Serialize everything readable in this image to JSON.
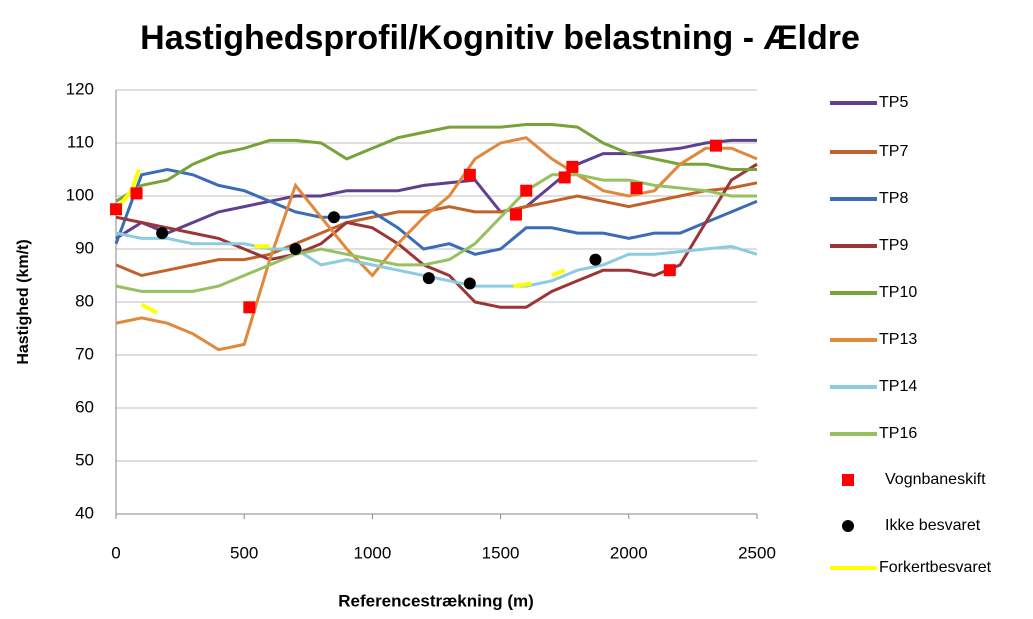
{
  "chart_data": {
    "type": "line",
    "title": "Hastighedsprofil/Kognitiv belastning - Ældre",
    "x_label": "Referencestrækning (m)",
    "y_label": "Hastighed (km/t)",
    "x": [
      0,
      100,
      200,
      300,
      400,
      500,
      600,
      700,
      800,
      900,
      1000,
      1100,
      1200,
      1300,
      1400,
      1500,
      1600,
      1700,
      1800,
      1900,
      2000,
      2100,
      2200,
      2300,
      2400,
      2500
    ],
    "xlim": [
      0,
      2500
    ],
    "xticks": [
      0,
      500,
      1000,
      1500,
      2000,
      2500
    ],
    "ylim": [
      40,
      120
    ],
    "yticks": [
      40,
      50,
      60,
      70,
      80,
      90,
      100,
      110,
      120
    ],
    "grid": true,
    "series": [
      {
        "name": "TP5",
        "color": "#5f3f8f",
        "values": [
          92,
          95,
          93,
          95,
          97,
          98,
          99,
          100,
          100,
          101,
          101,
          101,
          102,
          102.5,
          103,
          97,
          98,
          102,
          106,
          108,
          108,
          108.5,
          109,
          110,
          110.5,
          110.5
        ]
      },
      {
        "name": "TP7",
        "color": "#c0622a",
        "values": [
          87,
          85,
          86,
          87,
          88,
          88,
          89,
          91,
          93,
          95,
          96,
          97,
          97,
          98,
          97,
          97,
          98,
          99,
          100,
          99,
          98,
          99,
          100,
          101,
          101.5,
          102.5
        ]
      },
      {
        "name": "TP8",
        "color": "#3a6db5",
        "values": [
          91,
          104,
          105,
          104,
          102,
          101,
          99,
          97,
          96,
          96,
          97,
          94,
          90,
          91,
          89,
          90,
          94,
          94,
          93,
          93,
          92,
          93,
          93,
          95,
          97,
          99
        ]
      },
      {
        "name": "TP9",
        "color": "#9c3636",
        "values": [
          96,
          95,
          94,
          93,
          92,
          90,
          88,
          89,
          91,
          95,
          94,
          91,
          87,
          85,
          80,
          79,
          79,
          82,
          84,
          86,
          86,
          85,
          87,
          95,
          103,
          106
        ]
      },
      {
        "name": "TP10",
        "color": "#77a33a",
        "values": [
          99,
          102,
          103,
          106,
          108,
          109,
          110.5,
          110.5,
          110,
          107,
          109,
          111,
          112,
          113,
          113,
          113,
          113.5,
          113.5,
          113,
          110,
          108,
          107,
          106,
          106,
          105,
          105
        ]
      },
      {
        "name": "TP13",
        "color": "#e0883c",
        "values": [
          76,
          77,
          76,
          74,
          71,
          72,
          88,
          102,
          96,
          90,
          85,
          91,
          96,
          100,
          107,
          110,
          111,
          107,
          104,
          101,
          100,
          101,
          106,
          109,
          109,
          107
        ]
      },
      {
        "name": "TP14",
        "color": "#8ccbe0",
        "values": [
          93,
          92,
          92,
          91,
          91,
          91,
          90,
          90,
          87,
          88,
          87,
          86,
          85,
          84,
          83,
          83,
          83,
          84,
          86,
          87,
          89,
          89,
          89.5,
          90,
          90.5,
          89
        ]
      },
      {
        "name": "TP16",
        "color": "#96c160",
        "values": [
          83,
          82,
          82,
          82,
          83,
          85,
          87,
          89,
          90,
          89,
          88,
          87,
          87,
          88,
          91,
          96,
          101,
          104,
          104,
          103,
          103,
          102,
          101.5,
          101,
          100,
          100
        ]
      },
      {
        "name": "Vognbaneskift",
        "color": "#ff0000",
        "marker": "square",
        "x": [
          0,
          80,
          520,
          1380,
          1560,
          1600,
          1750,
          1780,
          2030,
          2160,
          2340
        ],
        "values": [
          97.5,
          100.5,
          79,
          104,
          96.5,
          101,
          103.5,
          105.5,
          101.5,
          86,
          109.5
        ]
      },
      {
        "name": "Ikke besvaret",
        "color": "#000000",
        "marker": "circle",
        "x": [
          180,
          700,
          850,
          1220,
          1380,
          1870
        ],
        "values": [
          93,
          90,
          96,
          84.5,
          83.5,
          88
        ]
      },
      {
        "name": "Forkertbesvaret",
        "color": "#ffff00",
        "x": [
          10,
          60,
          90,
          null,
          100,
          160,
          null,
          540,
          600,
          null,
          1550,
          1620,
          null,
          1700,
          1750
        ],
        "values": [
          98,
          101,
          105,
          null,
          79.5,
          78,
          null,
          90.5,
          90.5,
          null,
          83,
          83.5,
          null,
          85,
          86
        ]
      }
    ]
  }
}
